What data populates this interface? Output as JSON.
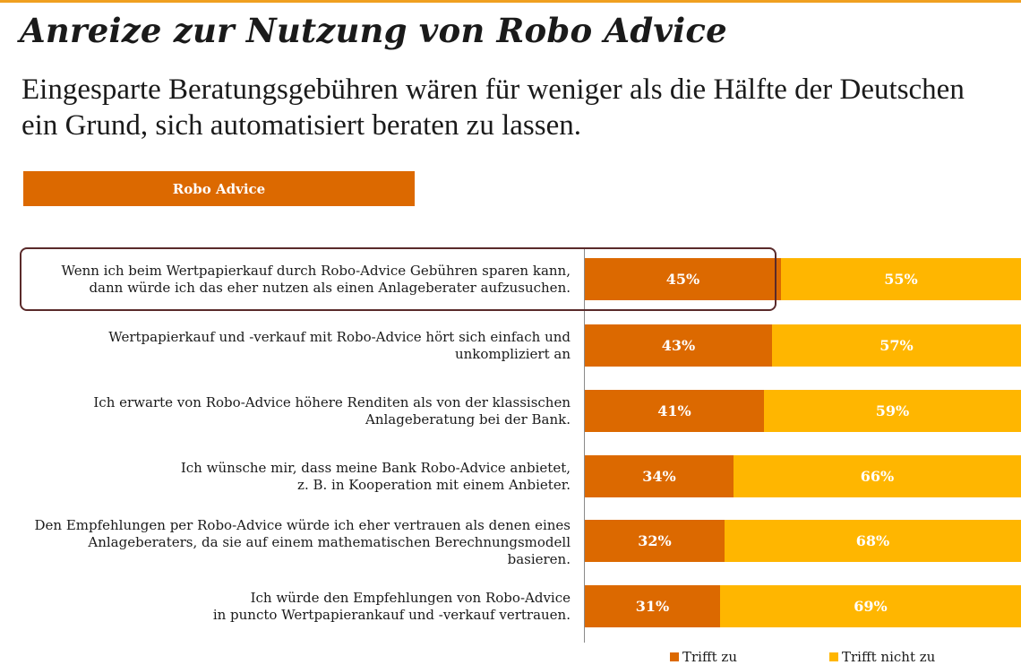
{
  "title": "Anreize zur Nutzung von Robo Advice",
  "subtitle": "Eingesparte Beratungsgebühren wären für weniger als die Hälfte der Deutschen ein Grund, sich automatisiert beraten zu lassen.",
  "section_label": "Robo Advice",
  "colors": {
    "trifft_zu": "#dc6900",
    "trifft_nicht_zu": "#ffb600",
    "highlight_border": "#5a2a2a"
  },
  "highlighted_row": 0,
  "chart_data": {
    "type": "bar",
    "orientation": "horizontal",
    "stacked": true,
    "percent_scale": true,
    "xlim": [
      0,
      100
    ],
    "grid": false,
    "legend_position": "bottom-right",
    "categories": [
      [
        "Wenn ich beim Wertpapierkauf durch Robo-Advice Gebühren sparen kann,",
        "dann würde ich das eher nutzen als einen Anlageberater aufzusuchen."
      ],
      [
        "Wertpapierkauf und -verkauf mit Robo-Advice hört sich einfach und",
        "unkompliziert an"
      ],
      [
        "Ich erwarte von Robo-Advice höhere Renditen als von der klassischen",
        "Anlageberatung bei der Bank."
      ],
      [
        "Ich wünsche mir, dass meine Bank Robo-Advice anbietet,",
        "z. B. in Kooperation mit einem Anbieter."
      ],
      [
        "Den Empfehlungen per Robo-Advice würde ich eher vertrauen als denen eines",
        "Anlageberaters, da sie auf einem mathematischen Berechnungsmodell",
        "basieren."
      ],
      [
        "Ich würde den Empfehlungen von Robo-Advice",
        "in puncto Wertpapierankauf und -verkauf vertrauen."
      ]
    ],
    "series": [
      {
        "name": "Trifft zu",
        "values": [
          45,
          43,
          41,
          34,
          32,
          31
        ],
        "labels": [
          "45%",
          "43%",
          "41%",
          "34%",
          "32%",
          "31%"
        ]
      },
      {
        "name": "Trifft nicht zu",
        "values": [
          55,
          57,
          59,
          66,
          68,
          69
        ],
        "labels": [
          "55%",
          "57%",
          "59%",
          "66%",
          "68%",
          "69%"
        ]
      }
    ]
  }
}
